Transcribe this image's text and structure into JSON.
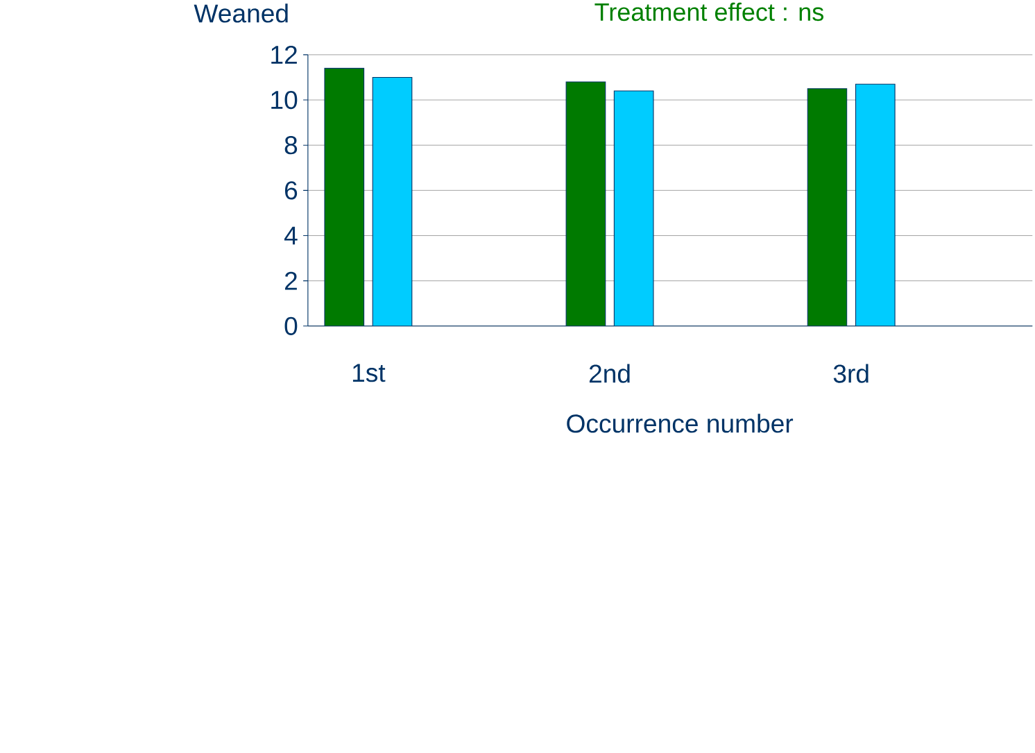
{
  "chart_data": {
    "type": "bar",
    "title": "Treatment effect : ns",
    "xlabel": "Occurrence number",
    "ylabel": "Weaned",
    "categories": [
      "1st",
      null,
      "2nd",
      null,
      "3rd",
      null
    ],
    "series": [
      {
        "color": "#007a00",
        "values": [
          11.4,
          null,
          10.8,
          null,
          10.5,
          null
        ]
      },
      {
        "color": "#00ccff",
        "values": [
          11.0,
          null,
          10.4,
          null,
          10.7,
          null
        ]
      }
    ],
    "ylim": [
      0,
      12
    ],
    "yticks": [
      0,
      2,
      4,
      6,
      8,
      10,
      12
    ],
    "grid": "y"
  }
}
